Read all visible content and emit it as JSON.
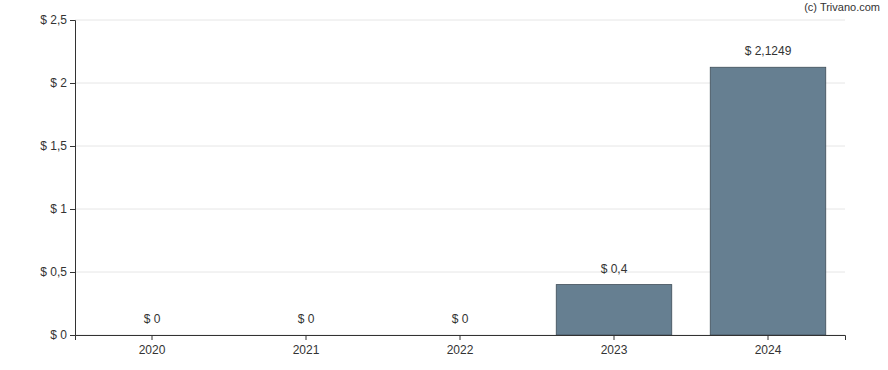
{
  "chart_data": {
    "type": "bar",
    "annotation": "(c) Trivano.com",
    "categories": [
      "2020",
      "2021",
      "2022",
      "2023",
      "2024"
    ],
    "values": [
      0,
      0,
      0,
      0.4,
      2.1249
    ],
    "value_labels": [
      "$ 0",
      "$ 0",
      "$ 0",
      "$ 0,4",
      "$ 2,1249"
    ],
    "data_labels": true,
    "color": "#667f91",
    "ylim": [
      0,
      2.5
    ],
    "yticks": [
      {
        "value": 0,
        "label": "$ 0"
      },
      {
        "value": 0.5,
        "label": "$ 0,5"
      },
      {
        "value": 1,
        "label": "$ 1"
      },
      {
        "value": 1.5,
        "label": "$ 1,5"
      },
      {
        "value": 2,
        "label": "$ 2"
      },
      {
        "value": 2.5,
        "label": "$ 2,5"
      }
    ],
    "grid": true
  }
}
